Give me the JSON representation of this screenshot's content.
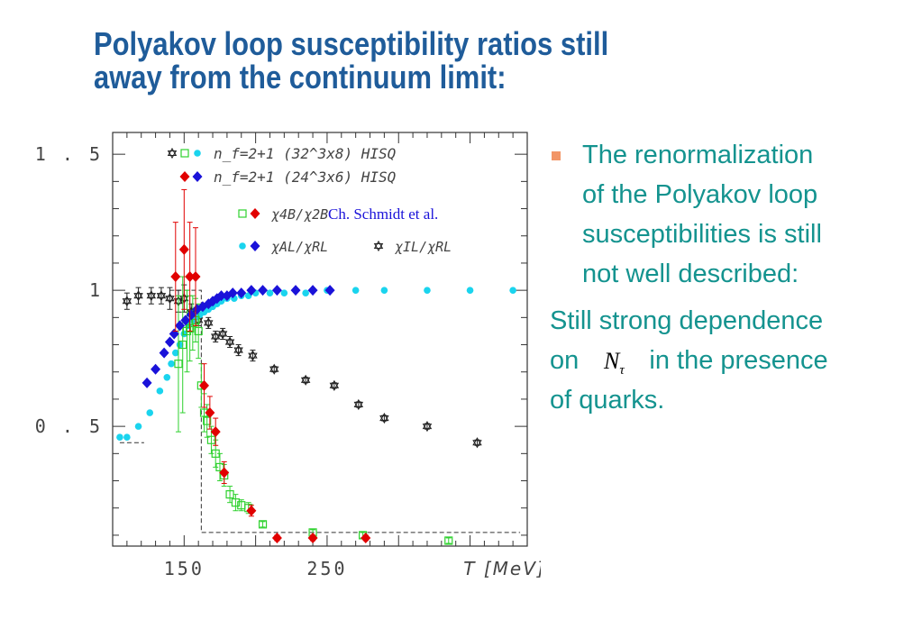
{
  "title": [
    "Polyakov loop susceptibility ratios still",
    "away  from the continuum  limit:"
  ],
  "bullet": {
    "lines": [
      "The renormalization",
      "of the Polyakov loop",
      "susceptibilities is still",
      "not well described:"
    ]
  },
  "paragraph": {
    "line1": "Still strong dependence",
    "line2_before": "on",
    "symbol": "N",
    "symbol_sub": "τ",
    "line2_after": "in the  presence",
    "line3": "of quarks."
  },
  "colors": {
    "title": "#1f5c9a",
    "text": "#14938f",
    "bullet": "#f29566",
    "red": "#e10000",
    "blue": "#1a12d9",
    "cyan": "#1ad4ee",
    "green": "#2ed12e",
    "black": "#222222"
  },
  "chart_data": {
    "type": "scatter",
    "xlabel": "T [MeV]",
    "ylabel": "",
    "xlim": [
      100,
      390
    ],
    "ylim": [
      0.06,
      1.58
    ],
    "xticks": [
      "150",
      "250"
    ],
    "yticks": [
      "0.5",
      "1",
      "1.5"
    ],
    "annotation": "Ch. Schmidt et al.",
    "legend": {
      "header": [
        {
          "label": "n_f=2+1 (32^3x8) HISQ",
          "symbols": [
            "black-star",
            "green-square",
            "cyan-dot"
          ]
        },
        {
          "label": "n_f=2+1 (24^3x6) HISQ",
          "symbols": [
            "red-diamond",
            "blue-diamond"
          ]
        }
      ],
      "ratios": [
        {
          "label": "χ4B/χ2B",
          "symbols": [
            "green-square",
            "red-diamond"
          ]
        },
        {
          "label": "χAL/χRL",
          "symbols": [
            "cyan-dot",
            "blue-diamond"
          ]
        },
        {
          "label": "χIL/χRL",
          "symbols": [
            "black-star"
          ]
        }
      ]
    },
    "series": [
      {
        "name": "χ4B/χ2B (32^3x8)",
        "marker": "square",
        "color": "green",
        "x": [
          146,
          149,
          152,
          154,
          156,
          158,
          160,
          162,
          164,
          166,
          169,
          172,
          175,
          178,
          182,
          186,
          190,
          195,
          205,
          240,
          275,
          335
        ],
        "y": [
          0.73,
          0.8,
          0.85,
          0.86,
          0.88,
          0.89,
          0.85,
          0.65,
          0.55,
          0.52,
          0.45,
          0.4,
          0.35,
          0.32,
          0.25,
          0.22,
          0.21,
          0.2,
          0.14,
          0.11,
          0.1,
          0.08
        ],
        "err": [
          0.25,
          0.25,
          0.15,
          0.12,
          0.1,
          0.08,
          0.1,
          0.08,
          0.07,
          0.06,
          0.05,
          0.05,
          0.05,
          0.04,
          0.03,
          0.03,
          0.02,
          0.02,
          0.01,
          0.01,
          0.01,
          0.01
        ]
      },
      {
        "name": "χ4B/χ2B (24^3x6)",
        "marker": "diamond",
        "color": "red",
        "x": [
          144,
          150,
          154,
          158,
          164,
          168,
          172,
          178,
          197,
          215,
          240,
          277
        ],
        "y": [
          1.05,
          1.15,
          1.05,
          1.05,
          0.65,
          0.55,
          0.48,
          0.33,
          0.19,
          0.09,
          0.09,
          0.09
        ],
        "err": [
          0.2,
          0.22,
          0.2,
          0.18,
          0.08,
          0.06,
          0.05,
          0.04,
          0.02,
          0.01,
          0.01,
          0.01
        ]
      },
      {
        "name": "χAL/χRL (32^3x8)",
        "marker": "dot",
        "color": "cyan",
        "x": [
          105,
          110,
          118,
          126,
          133,
          138,
          141,
          144,
          147,
          150,
          153,
          156,
          158,
          161,
          164,
          167,
          170,
          173,
          176,
          180,
          185,
          190,
          195,
          200,
          210,
          220,
          235,
          250,
          270,
          290,
          320,
          350,
          380
        ],
        "y": [
          0.46,
          0.46,
          0.5,
          0.55,
          0.63,
          0.68,
          0.73,
          0.77,
          0.8,
          0.84,
          0.87,
          0.89,
          0.9,
          0.91,
          0.92,
          0.93,
          0.94,
          0.95,
          0.96,
          0.97,
          0.97,
          0.98,
          0.98,
          0.99,
          0.99,
          0.99,
          0.99,
          1.0,
          1.0,
          1.0,
          1.0,
          1.0,
          1.0
        ]
      },
      {
        "name": "χAL/χRL (24^3x6)",
        "marker": "diamond",
        "color": "blue",
        "x": [
          124,
          130,
          136,
          140,
          143,
          147,
          151,
          155,
          159,
          163,
          167,
          170,
          173,
          176,
          180,
          184,
          190,
          197,
          205,
          215,
          228,
          240,
          252
        ],
        "y": [
          0.66,
          0.71,
          0.77,
          0.81,
          0.84,
          0.87,
          0.89,
          0.91,
          0.93,
          0.94,
          0.95,
          0.96,
          0.97,
          0.98,
          0.98,
          0.99,
          0.99,
          1.0,
          1.0,
          1.0,
          1.0,
          1.0,
          1.0
        ]
      },
      {
        "name": "χIL/χRL (32^3x8)",
        "marker": "star",
        "color": "black",
        "x": [
          110,
          118,
          127,
          134,
          140,
          146,
          150,
          155,
          160,
          167,
          172,
          177,
          182,
          188,
          198,
          213,
          235,
          255,
          272,
          290,
          320,
          355
        ],
        "y": [
          0.96,
          0.98,
          0.98,
          0.98,
          0.97,
          0.96,
          0.97,
          0.92,
          0.89,
          0.88,
          0.83,
          0.84,
          0.81,
          0.78,
          0.76,
          0.71,
          0.67,
          0.65,
          0.58,
          0.53,
          0.5,
          0.44
        ],
        "err": [
          0.03,
          0.03,
          0.03,
          0.03,
          0.04,
          0.04,
          0.05,
          0.03,
          0.02,
          0.02,
          0.02,
          0.02,
          0.02,
          0.02,
          0.02,
          0.01,
          0.01,
          0.01,
          0.01,
          0.01,
          0.01,
          0.01
        ]
      }
    ],
    "reference_lines": [
      {
        "name": "low-T limit",
        "x": [
          105,
          122
        ],
        "y": [
          0.44,
          0.44
        ]
      },
      {
        "name": "continuum step",
        "points": [
          [
            140,
            1.0
          ],
          [
            162,
            1.0
          ],
          [
            162,
            0.11
          ],
          [
            385,
            0.11
          ]
        ]
      }
    ],
    "grid": false
  }
}
